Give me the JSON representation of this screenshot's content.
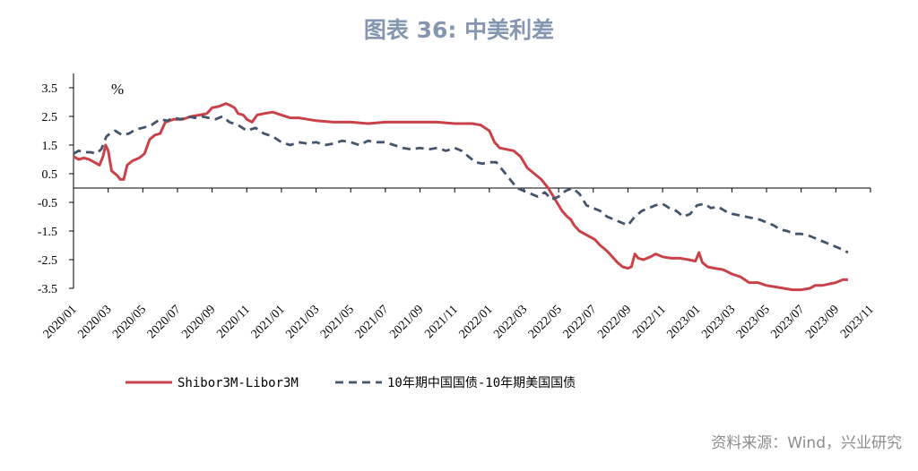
{
  "title": "图表 36: 中美利差",
  "source": "资料来源：Wind，兴业研究",
  "chart_data": {
    "type": "line",
    "unit": "%",
    "ylim": [
      -3.5,
      4.0
    ],
    "yticks": [
      "3.5",
      "2.5",
      "1.5",
      "0.5",
      "-0.5",
      "-1.5",
      "-2.5",
      "-3.5"
    ],
    "xticks": [
      "2020/01",
      "2020/03",
      "2020/05",
      "2020/07",
      "2020/09",
      "2020/11",
      "2021/01",
      "2021/03",
      "2021/05",
      "2021/07",
      "2021/09",
      "2021/11",
      "2022/01",
      "2022/03",
      "2022/05",
      "2022/07",
      "2022/09",
      "2022/11",
      "2023/01",
      "2023/03",
      "2023/05",
      "2023/07",
      "2023/09",
      "2023/11"
    ],
    "grid": false,
    "legend": "bottom",
    "series": [
      {
        "name": "Shibor3M-Libor3M",
        "color": "#C9424A",
        "style": "solid",
        "points": [
          [
            0.0,
            1.1
          ],
          [
            0.3,
            1.0
          ],
          [
            0.6,
            1.05
          ],
          [
            0.9,
            1.0
          ],
          [
            1.2,
            0.9
          ],
          [
            1.5,
            0.8
          ],
          [
            1.7,
            1.1
          ],
          [
            1.85,
            1.5
          ],
          [
            2.0,
            1.3
          ],
          [
            2.2,
            0.6
          ],
          [
            2.5,
            0.45
          ],
          [
            2.7,
            0.3
          ],
          [
            2.9,
            0.3
          ],
          [
            3.1,
            0.8
          ],
          [
            3.4,
            0.95
          ],
          [
            3.8,
            1.05
          ],
          [
            4.1,
            1.2
          ],
          [
            4.4,
            1.7
          ],
          [
            4.7,
            1.85
          ],
          [
            5.0,
            1.9
          ],
          [
            5.3,
            2.3
          ],
          [
            5.8,
            2.4
          ],
          [
            6.3,
            2.4
          ],
          [
            6.8,
            2.5
          ],
          [
            7.3,
            2.55
          ],
          [
            7.7,
            2.6
          ],
          [
            8.0,
            2.8
          ],
          [
            8.4,
            2.85
          ],
          [
            8.8,
            2.95
          ],
          [
            9.0,
            2.9
          ],
          [
            9.3,
            2.8
          ],
          [
            9.5,
            2.6
          ],
          [
            9.8,
            2.55
          ],
          [
            10.0,
            2.4
          ],
          [
            10.3,
            2.3
          ],
          [
            10.6,
            2.55
          ],
          [
            11.0,
            2.6
          ],
          [
            11.5,
            2.65
          ],
          [
            12.0,
            2.55
          ],
          [
            12.5,
            2.45
          ],
          [
            13.0,
            2.45
          ],
          [
            13.5,
            2.4
          ],
          [
            14.0,
            2.35
          ],
          [
            15.0,
            2.3
          ],
          [
            16.0,
            2.3
          ],
          [
            17.0,
            2.25
          ],
          [
            18.0,
            2.3
          ],
          [
            19.0,
            2.3
          ],
          [
            20.0,
            2.3
          ],
          [
            21.0,
            2.3
          ],
          [
            22.0,
            2.25
          ],
          [
            23.0,
            2.25
          ],
          [
            23.5,
            2.2
          ],
          [
            24.0,
            2.0
          ],
          [
            24.3,
            1.6
          ],
          [
            24.6,
            1.4
          ],
          [
            25.0,
            1.35
          ],
          [
            25.4,
            1.3
          ],
          [
            25.8,
            1.1
          ],
          [
            26.2,
            0.7
          ],
          [
            26.6,
            0.5
          ],
          [
            27.0,
            0.3
          ],
          [
            27.4,
            0.0
          ],
          [
            27.8,
            -0.4
          ],
          [
            28.2,
            -0.8
          ],
          [
            28.5,
            -1.0
          ],
          [
            28.7,
            -1.1
          ],
          [
            28.9,
            -1.3
          ],
          [
            29.2,
            -1.5
          ],
          [
            29.5,
            -1.6
          ],
          [
            29.8,
            -1.7
          ],
          [
            30.1,
            -1.8
          ],
          [
            30.4,
            -2.0
          ],
          [
            30.8,
            -2.2
          ],
          [
            31.1,
            -2.4
          ],
          [
            31.4,
            -2.6
          ],
          [
            31.7,
            -2.75
          ],
          [
            32.0,
            -2.8
          ],
          [
            32.2,
            -2.75
          ],
          [
            32.4,
            -2.3
          ],
          [
            32.6,
            -2.45
          ],
          [
            32.9,
            -2.5
          ],
          [
            33.3,
            -2.4
          ],
          [
            33.6,
            -2.3
          ],
          [
            34.0,
            -2.4
          ],
          [
            34.5,
            -2.45
          ],
          [
            35.0,
            -2.45
          ],
          [
            35.5,
            -2.5
          ],
          [
            35.9,
            -2.55
          ],
          [
            36.1,
            -2.25
          ],
          [
            36.3,
            -2.6
          ],
          [
            36.6,
            -2.75
          ],
          [
            37.0,
            -2.8
          ],
          [
            37.5,
            -2.85
          ],
          [
            38.0,
            -3.0
          ],
          [
            38.5,
            -3.1
          ],
          [
            39.0,
            -3.3
          ],
          [
            39.5,
            -3.3
          ],
          [
            40.0,
            -3.4
          ],
          [
            40.5,
            -3.45
          ],
          [
            41.0,
            -3.5
          ],
          [
            41.5,
            -3.55
          ],
          [
            42.0,
            -3.55
          ],
          [
            42.5,
            -3.5
          ],
          [
            42.8,
            -3.4
          ],
          [
            43.2,
            -3.4
          ],
          [
            43.6,
            -3.35
          ],
          [
            44.0,
            -3.3
          ],
          [
            44.4,
            -3.2
          ],
          [
            44.7,
            -3.2
          ]
        ]
      },
      {
        "name": "10年期中国国债-10年期美国国债",
        "color": "#44546A",
        "style": "dashed",
        "points": [
          [
            0.0,
            1.2
          ],
          [
            0.3,
            1.3
          ],
          [
            0.7,
            1.25
          ],
          [
            1.0,
            1.25
          ],
          [
            1.3,
            1.2
          ],
          [
            1.6,
            1.35
          ],
          [
            1.9,
            1.8
          ],
          [
            2.1,
            1.9
          ],
          [
            2.4,
            2.0
          ],
          [
            2.8,
            1.85
          ],
          [
            3.2,
            1.9
          ],
          [
            3.6,
            2.05
          ],
          [
            4.0,
            2.1
          ],
          [
            4.5,
            2.2
          ],
          [
            5.0,
            2.4
          ],
          [
            5.4,
            2.35
          ],
          [
            5.8,
            2.45
          ],
          [
            6.2,
            2.4
          ],
          [
            6.6,
            2.5
          ],
          [
            7.0,
            2.45
          ],
          [
            7.4,
            2.5
          ],
          [
            7.8,
            2.45
          ],
          [
            8.2,
            2.4
          ],
          [
            8.6,
            2.5
          ],
          [
            9.0,
            2.3
          ],
          [
            9.5,
            2.2
          ],
          [
            10.0,
            2.0
          ],
          [
            10.5,
            2.1
          ],
          [
            11.0,
            1.9
          ],
          [
            11.5,
            1.8
          ],
          [
            12.0,
            1.6
          ],
          [
            12.5,
            1.5
          ],
          [
            13.0,
            1.6
          ],
          [
            13.5,
            1.55
          ],
          [
            14.0,
            1.6
          ],
          [
            14.5,
            1.5
          ],
          [
            15.0,
            1.55
          ],
          [
            15.5,
            1.65
          ],
          [
            16.0,
            1.6
          ],
          [
            16.5,
            1.5
          ],
          [
            17.0,
            1.65
          ],
          [
            17.5,
            1.6
          ],
          [
            18.0,
            1.6
          ],
          [
            18.5,
            1.5
          ],
          [
            19.0,
            1.4
          ],
          [
            19.5,
            1.35
          ],
          [
            20.0,
            1.4
          ],
          [
            20.5,
            1.35
          ],
          [
            21.0,
            1.4
          ],
          [
            21.5,
            1.3
          ],
          [
            22.0,
            1.4
          ],
          [
            22.4,
            1.3
          ],
          [
            22.8,
            1.1
          ],
          [
            23.2,
            0.9
          ],
          [
            23.6,
            0.85
          ],
          [
            24.0,
            0.9
          ],
          [
            24.4,
            0.9
          ],
          [
            24.8,
            0.6
          ],
          [
            25.2,
            0.3
          ],
          [
            25.6,
            0.0
          ],
          [
            26.0,
            -0.1
          ],
          [
            26.4,
            -0.2
          ],
          [
            26.8,
            -0.3
          ],
          [
            27.2,
            -0.15
          ],
          [
            27.6,
            -0.4
          ],
          [
            28.0,
            -0.3
          ],
          [
            28.4,
            -0.1
          ],
          [
            28.8,
            0.0
          ],
          [
            29.2,
            -0.2
          ],
          [
            29.6,
            -0.6
          ],
          [
            30.0,
            -0.7
          ],
          [
            30.4,
            -0.8
          ],
          [
            30.8,
            -1.0
          ],
          [
            31.2,
            -1.1
          ],
          [
            31.6,
            -1.2
          ],
          [
            32.0,
            -1.3
          ],
          [
            32.4,
            -1.0
          ],
          [
            32.8,
            -0.8
          ],
          [
            33.2,
            -0.7
          ],
          [
            33.6,
            -0.6
          ],
          [
            34.0,
            -0.55
          ],
          [
            34.4,
            -0.7
          ],
          [
            34.8,
            -0.8
          ],
          [
            35.2,
            -1.0
          ],
          [
            35.6,
            -0.9
          ],
          [
            36.0,
            -0.6
          ],
          [
            36.4,
            -0.55
          ],
          [
            36.8,
            -0.7
          ],
          [
            37.2,
            -0.65
          ],
          [
            37.6,
            -0.8
          ],
          [
            38.0,
            -0.9
          ],
          [
            38.4,
            -0.95
          ],
          [
            38.8,
            -1.0
          ],
          [
            39.2,
            -1.05
          ],
          [
            39.6,
            -1.1
          ],
          [
            40.0,
            -1.2
          ],
          [
            40.4,
            -1.3
          ],
          [
            40.8,
            -1.45
          ],
          [
            41.2,
            -1.5
          ],
          [
            41.6,
            -1.6
          ],
          [
            42.0,
            -1.6
          ],
          [
            42.4,
            -1.65
          ],
          [
            42.8,
            -1.75
          ],
          [
            43.2,
            -1.85
          ],
          [
            43.6,
            -1.95
          ],
          [
            44.0,
            -2.05
          ],
          [
            44.4,
            -2.15
          ],
          [
            44.7,
            -2.25
          ]
        ]
      }
    ]
  }
}
